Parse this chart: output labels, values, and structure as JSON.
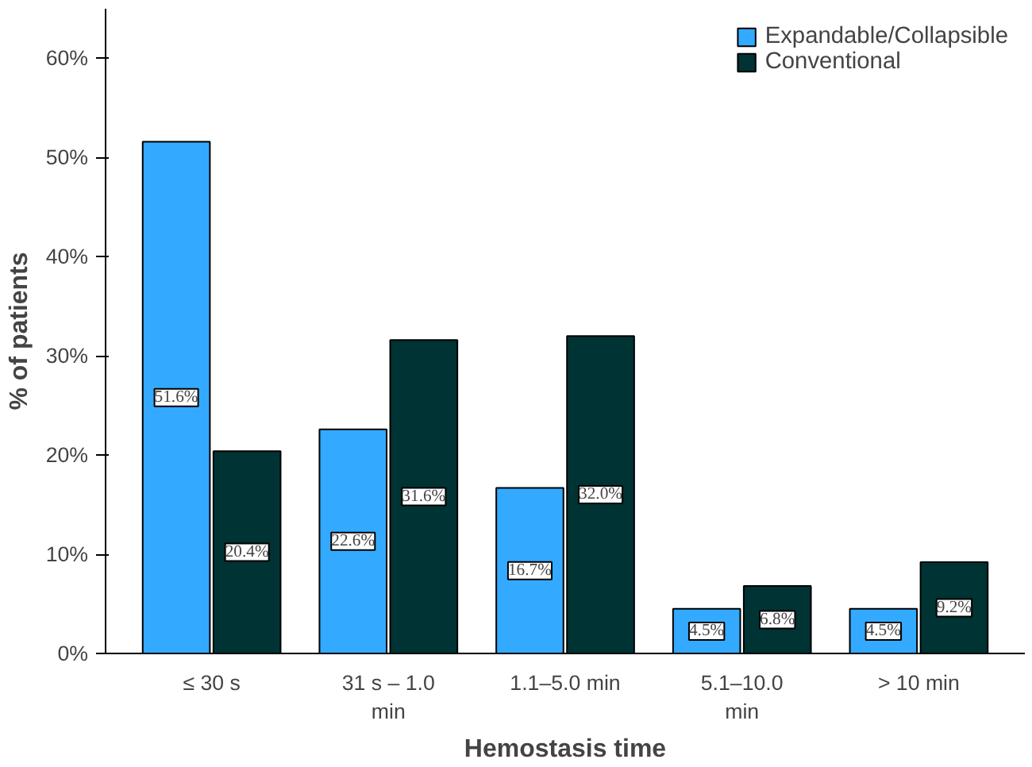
{
  "chart_data": {
    "type": "bar",
    "xlabel": "Hemostasis time",
    "ylabel": "% of patients",
    "categories": [
      "≤ 30 s",
      "31 s – 1.0 min",
      "1.1–5.0 min",
      "5.1–10.0 min",
      "> 10 min"
    ],
    "series": [
      {
        "name": "Expandable/Collapsible",
        "color": "#33aaff",
        "values": [
          51.6,
          22.6,
          16.7,
          4.5,
          4.5
        ],
        "value_labels": [
          "51.6%",
          "22.6%",
          "16.7%",
          "4.5%",
          "4.5%"
        ]
      },
      {
        "name": "Conventional",
        "color": "#003333",
        "values": [
          20.4,
          31.6,
          32.0,
          6.8,
          9.2
        ],
        "value_labels": [
          "20.4%",
          "31.6%",
          "32.0%",
          "6.8%",
          "9.2%"
        ]
      }
    ],
    "ylim": [
      0,
      65
    ],
    "yticks": [
      {
        "value": 0,
        "label": "0%"
      },
      {
        "value": 10,
        "label": "10%"
      },
      {
        "value": 20,
        "label": "20%"
      },
      {
        "value": 30,
        "label": "30%"
      },
      {
        "value": 40,
        "label": "40%"
      },
      {
        "value": 50,
        "label": "50%"
      },
      {
        "value": 60,
        "label": "60%"
      }
    ],
    "grid": false,
    "legend": "top right"
  }
}
